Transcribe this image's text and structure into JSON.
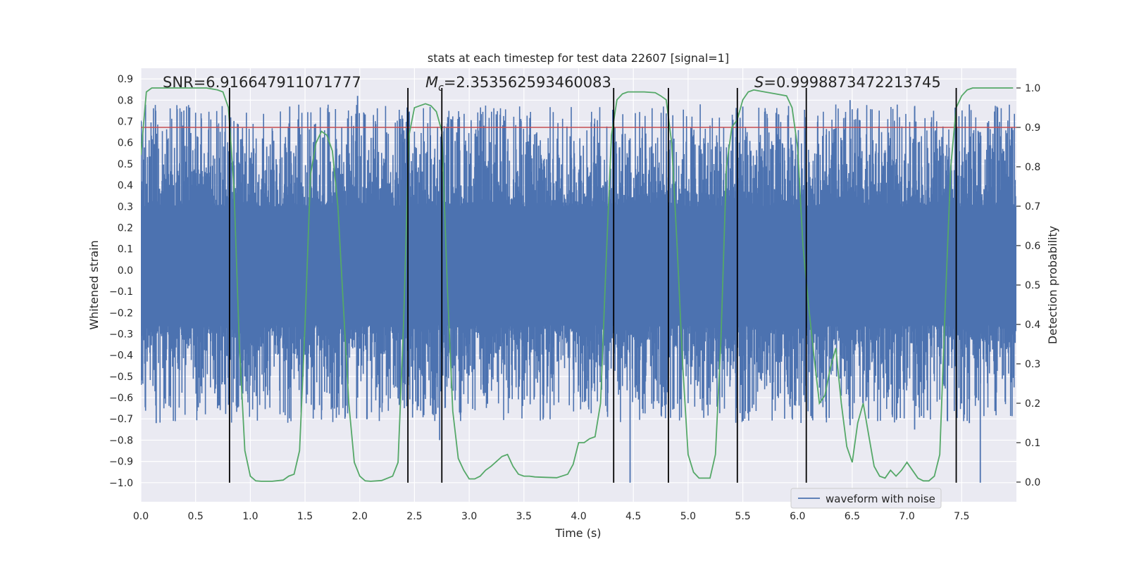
{
  "chart_data": {
    "type": "line",
    "title": "stats at each timestep for test data 22607 [signal=1]",
    "xlabel": "Time (s)",
    "ylabel": "Whitened strain",
    "y2label": "Detection probability",
    "xlim": [
      0.0,
      8.0
    ],
    "ylim": [
      -1.09,
      0.95
    ],
    "y2lim": [
      -0.05,
      1.05
    ],
    "xticks": [
      0.0,
      0.5,
      1.0,
      1.5,
      2.0,
      2.5,
      3.0,
      3.5,
      4.0,
      4.5,
      5.0,
      5.5,
      6.0,
      6.5,
      7.0,
      7.5
    ],
    "xtick_labels": [
      "0.0",
      "0.5",
      "1.0",
      "1.5",
      "2.0",
      "2.5",
      "3.0",
      "3.5",
      "4.0",
      "4.5",
      "5.0",
      "5.5",
      "6.0",
      "6.5",
      "7.0",
      "7.5"
    ],
    "yticks": [
      -1.0,
      -0.9,
      -0.8,
      -0.7,
      -0.6,
      -0.5,
      -0.4,
      -0.3,
      -0.2,
      -0.1,
      0.0,
      0.1,
      0.2,
      0.3,
      0.4,
      0.5,
      0.6,
      0.7,
      0.8,
      0.9
    ],
    "ytick_labels": [
      "−1.0",
      "−0.9",
      "−0.8",
      "−0.7",
      "−0.6",
      "−0.5",
      "−0.4",
      "−0.3",
      "−0.2",
      "−0.1",
      "0.0",
      "0.1",
      "0.2",
      "0.3",
      "0.4",
      "0.5",
      "0.6",
      "0.7",
      "0.8",
      "0.9"
    ],
    "y2ticks": [
      0.0,
      0.1,
      0.2,
      0.3,
      0.4,
      0.5,
      0.6,
      0.7,
      0.8,
      0.9,
      1.0
    ],
    "y2tick_labels": [
      "0.0",
      "0.1",
      "0.2",
      "0.3",
      "0.4",
      "0.5",
      "0.6",
      "0.7",
      "0.8",
      "0.9",
      "1.0"
    ],
    "annotations": {
      "snr_label": "SNR=6.916647911071777",
      "mc_symbol": "M",
      "mc_subscript": "c",
      "mc_value": "=2.353562593460083",
      "s_symbol": "S",
      "s_value": "=0.9998873472213745"
    },
    "threshold": {
      "value": 0.9,
      "axis": "y2",
      "color": "#c44e52"
    },
    "event_lines": [
      0.81,
      2.44,
      2.75,
      4.32,
      4.82,
      5.45,
      6.08,
      7.45
    ],
    "series": [
      {
        "name": "waveform with noise",
        "axis": "y",
        "color": "#4c72b0",
        "dense_band": [
          -0.26,
          0.3
        ],
        "spikes_per_second": 280
      },
      {
        "name": "detection probability",
        "axis": "y2",
        "color": "#55a868",
        "x": [
          0.0,
          0.05,
          0.1,
          0.2,
          0.3,
          0.4,
          0.5,
          0.6,
          0.7,
          0.75,
          0.8,
          0.85,
          0.9,
          0.95,
          1.0,
          1.05,
          1.1,
          1.2,
          1.3,
          1.35,
          1.4,
          1.45,
          1.5,
          1.55,
          1.6,
          1.65,
          1.7,
          1.75,
          1.8,
          1.85,
          1.9,
          1.95,
          2.0,
          2.05,
          2.1,
          2.2,
          2.3,
          2.35,
          2.4,
          2.45,
          2.5,
          2.55,
          2.6,
          2.65,
          2.7,
          2.75,
          2.8,
          2.85,
          2.9,
          2.95,
          3.0,
          3.05,
          3.1,
          3.15,
          3.2,
          3.3,
          3.35,
          3.4,
          3.45,
          3.5,
          3.55,
          3.6,
          3.7,
          3.8,
          3.9,
          3.95,
          4.0,
          4.05,
          4.1,
          4.15,
          4.2,
          4.25,
          4.3,
          4.35,
          4.4,
          4.45,
          4.5,
          4.6,
          4.7,
          4.75,
          4.8,
          4.85,
          4.9,
          4.95,
          5.0,
          5.05,
          5.1,
          5.15,
          5.2,
          5.25,
          5.3,
          5.35,
          5.4,
          5.45,
          5.5,
          5.55,
          5.6,
          5.7,
          5.8,
          5.9,
          5.95,
          6.0,
          6.05,
          6.1,
          6.15,
          6.2,
          6.25,
          6.3,
          6.35,
          6.4,
          6.45,
          6.5,
          6.55,
          6.6,
          6.65,
          6.7,
          6.75,
          6.8,
          6.85,
          6.9,
          6.95,
          7.0,
          7.05,
          7.1,
          7.15,
          7.2,
          7.25,
          7.3,
          7.35,
          7.4,
          7.45,
          7.5,
          7.55,
          7.6,
          7.7,
          7.8,
          7.9,
          7.97
        ],
        "y": [
          0.83,
          0.99,
          1.0,
          1.0,
          1.0,
          1.0,
          1.0,
          1.0,
          0.995,
          0.99,
          0.95,
          0.75,
          0.35,
          0.08,
          0.015,
          0.003,
          0.002,
          0.002,
          0.005,
          0.015,
          0.02,
          0.08,
          0.4,
          0.78,
          0.86,
          0.89,
          0.88,
          0.84,
          0.7,
          0.45,
          0.2,
          0.05,
          0.015,
          0.003,
          0.002,
          0.004,
          0.015,
          0.05,
          0.4,
          0.88,
          0.95,
          0.955,
          0.96,
          0.955,
          0.94,
          0.89,
          0.5,
          0.18,
          0.06,
          0.03,
          0.008,
          0.008,
          0.015,
          0.03,
          0.04,
          0.065,
          0.07,
          0.04,
          0.02,
          0.015,
          0.015,
          0.013,
          0.012,
          0.011,
          0.02,
          0.045,
          0.1,
          0.1,
          0.11,
          0.115,
          0.2,
          0.55,
          0.88,
          0.97,
          0.985,
          0.99,
          0.99,
          0.99,
          0.988,
          0.98,
          0.97,
          0.86,
          0.6,
          0.3,
          0.07,
          0.025,
          0.01,
          0.01,
          0.01,
          0.07,
          0.36,
          0.8,
          0.9,
          0.92,
          0.97,
          0.99,
          0.995,
          0.99,
          0.985,
          0.98,
          0.95,
          0.85,
          0.6,
          0.45,
          0.32,
          0.2,
          0.22,
          0.29,
          0.34,
          0.2,
          0.09,
          0.05,
          0.15,
          0.2,
          0.12,
          0.04,
          0.015,
          0.01,
          0.03,
          0.015,
          0.03,
          0.05,
          0.03,
          0.01,
          0.003,
          0.003,
          0.015,
          0.07,
          0.45,
          0.8,
          0.95,
          0.98,
          0.995,
          1.0,
          1.0,
          1.0,
          1.0,
          1.0
        ]
      }
    ],
    "legend": {
      "entries": [
        "waveform with noise"
      ],
      "location": "lower-right"
    },
    "grid": true,
    "background": "#eaeaf2",
    "foreground": "#262626"
  }
}
